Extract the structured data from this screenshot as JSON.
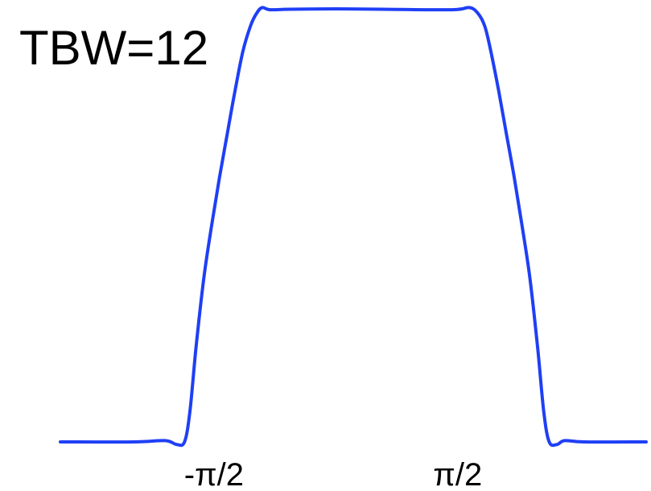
{
  "chart_data": {
    "type": "line",
    "annotation": "TBW=12",
    "xlabel": "",
    "ylabel": "",
    "grid": false,
    "x_ticks": [
      {
        "value": -1.5708,
        "label": "-π/2"
      },
      {
        "value": 1.5708,
        "label": "π/2"
      }
    ],
    "xlim": [
      -3.55,
      4.0
    ],
    "ylim": [
      0,
      1
    ],
    "series": [
      {
        "color": "#1f3ff5",
        "x": [
          -3.55,
          -2.6,
          -2.2,
          -2.05,
          -1.95,
          -1.88,
          -1.8,
          -1.7,
          -1.6,
          -1.5,
          -1.4,
          -1.3,
          -1.2,
          -1.1,
          -1.02,
          -0.95,
          -0.85,
          -0.6,
          0.0,
          0.6,
          1.5,
          1.72,
          1.83,
          1.92,
          2.0,
          2.1,
          2.2,
          2.3,
          2.4,
          2.5,
          2.6,
          2.68,
          2.75,
          2.85,
          2.95,
          3.2,
          4.0
        ],
        "y": [
          0.0,
          0.0,
          0.003,
          -0.006,
          0.0,
          0.07,
          0.22,
          0.38,
          0.5,
          0.61,
          0.71,
          0.81,
          0.9,
          0.96,
          0.99,
          1.003,
          0.998,
          0.999,
          1.0,
          0.999,
          0.998,
          1.003,
          0.99,
          0.96,
          0.9,
          0.81,
          0.71,
          0.61,
          0.5,
          0.38,
          0.22,
          0.07,
          0.0,
          -0.006,
          0.003,
          0.0,
          0.0
        ]
      }
    ]
  }
}
